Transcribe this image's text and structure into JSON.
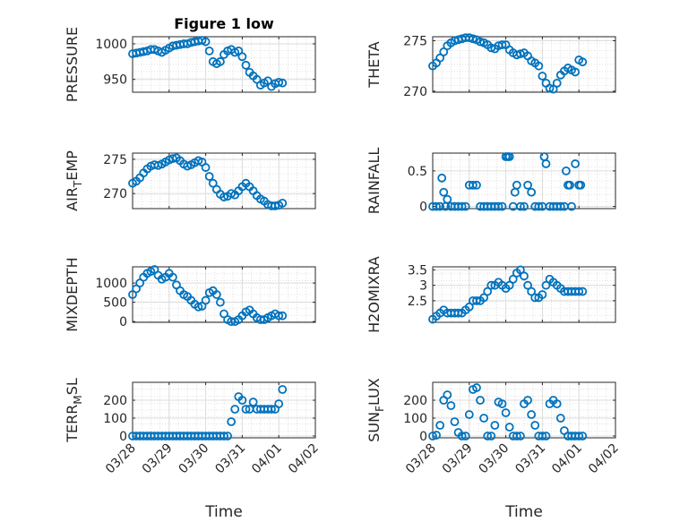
{
  "figure": {
    "title": "Figure 1 low",
    "marker_color": "#0072BD",
    "axis_color": "#262626",
    "grid_color": "#d9d9d9"
  },
  "chart_data": [
    {
      "type": "scatter",
      "ylabel": "PRESSURE",
      "ylabel_sub": "",
      "ylabel_tail": "",
      "xticks": [],
      "yticks": [
        950,
        1000
      ],
      "ylim": [
        932,
        1010
      ],
      "xlim": [
        0,
        5
      ],
      "x": [
        0.0,
        0.1,
        0.2,
        0.3,
        0.4,
        0.5,
        0.6,
        0.7,
        0.8,
        0.9,
        1.0,
        1.1,
        1.2,
        1.3,
        1.4,
        1.5,
        1.6,
        1.7,
        1.8,
        1.9,
        2.0,
        2.1,
        2.2,
        2.3,
        2.4,
        2.5,
        2.6,
        2.7,
        2.8,
        2.9,
        3.0,
        3.1,
        3.2,
        3.3,
        3.4,
        3.5,
        3.6,
        3.7,
        3.8,
        3.9,
        4.0,
        4.1
      ],
      "y": [
        986,
        987,
        988,
        989,
        990,
        992,
        992,
        990,
        988,
        991,
        994,
        997,
        998,
        999,
        1000,
        1000,
        1002,
        1003,
        1004,
        1005,
        1003,
        990,
        975,
        972,
        975,
        985,
        990,
        992,
        988,
        990,
        982,
        970,
        960,
        955,
        950,
        942,
        945,
        948,
        940,
        944,
        946,
        945
      ]
    },
    {
      "type": "scatter",
      "ylabel": "THETA",
      "ylabel_sub": "",
      "ylabel_tail": "",
      "xticks": [],
      "yticks": [
        270,
        275
      ],
      "ylim": [
        269.9,
        275.4
      ],
      "xlim": [
        0,
        5
      ],
      "x": [
        0.0,
        0.1,
        0.2,
        0.3,
        0.4,
        0.5,
        0.6,
        0.7,
        0.8,
        0.9,
        1.0,
        1.1,
        1.2,
        1.3,
        1.4,
        1.5,
        1.6,
        1.7,
        1.8,
        1.9,
        2.0,
        2.1,
        2.2,
        2.3,
        2.4,
        2.5,
        2.6,
        2.7,
        2.8,
        2.9,
        3.0,
        3.1,
        3.2,
        3.3,
        3.4,
        3.5,
        3.6,
        3.7,
        3.8,
        3.9,
        4.0,
        4.1
      ],
      "y": [
        272.5,
        272.8,
        273.3,
        273.9,
        274.5,
        274.8,
        275.0,
        275.1,
        275.2,
        275.3,
        275.3,
        275.2,
        275.1,
        274.9,
        274.8,
        274.6,
        274.3,
        274.2,
        274.5,
        274.6,
        274.6,
        274.1,
        273.8,
        273.6,
        273.7,
        273.8,
        273.5,
        273.0,
        272.8,
        272.5,
        271.5,
        270.8,
        270.3,
        270.2,
        270.8,
        271.6,
        272.0,
        272.3,
        272.1,
        271.9,
        273.1,
        272.9
      ]
    },
    {
      "type": "scatter",
      "ylabel": "AIR",
      "ylabel_sub": "T",
      "ylabel_tail": "EMP",
      "xticks": [],
      "yticks": [
        270,
        275
      ],
      "ylim": [
        267.8,
        275.9
      ],
      "xlim": [
        0,
        5
      ],
      "x": [
        0.0,
        0.1,
        0.2,
        0.3,
        0.4,
        0.5,
        0.6,
        0.7,
        0.8,
        0.9,
        1.0,
        1.1,
        1.2,
        1.3,
        1.4,
        1.5,
        1.6,
        1.7,
        1.8,
        1.9,
        2.0,
        2.1,
        2.2,
        2.3,
        2.4,
        2.5,
        2.6,
        2.7,
        2.8,
        2.9,
        3.0,
        3.1,
        3.2,
        3.3,
        3.4,
        3.5,
        3.6,
        3.7,
        3.8,
        3.9,
        4.0,
        4.1
      ],
      "y": [
        271.5,
        271.8,
        272.3,
        273.0,
        273.6,
        274.0,
        274.2,
        274.1,
        274.3,
        274.6,
        274.9,
        275.1,
        275.2,
        274.8,
        274.3,
        274.0,
        274.2,
        274.5,
        274.8,
        274.6,
        273.8,
        272.5,
        271.5,
        270.6,
        269.9,
        269.5,
        269.6,
        270.0,
        269.8,
        270.4,
        271.0,
        271.5,
        271.0,
        270.4,
        269.7,
        269.2,
        268.9,
        268.4,
        268.2,
        268.2,
        268.3,
        268.6
      ]
    },
    {
      "type": "scatter",
      "ylabel": "RAINFALL",
      "ylabel_sub": "",
      "ylabel_tail": "",
      "xticks": [],
      "yticks": [
        0,
        0.5
      ],
      "ylim": [
        -0.03,
        0.75
      ],
      "xlim": [
        0,
        5
      ],
      "x": [
        0.0,
        0.1,
        0.2,
        0.25,
        0.3,
        0.35,
        0.4,
        0.5,
        0.6,
        0.7,
        0.8,
        0.9,
        1.0,
        1.1,
        1.2,
        1.3,
        1.4,
        1.5,
        1.6,
        1.7,
        1.8,
        1.9,
        2.0,
        2.05,
        2.1,
        2.2,
        2.25,
        2.3,
        2.4,
        2.5,
        2.6,
        2.7,
        2.8,
        2.9,
        3.0,
        3.05,
        3.1,
        3.2,
        3.3,
        3.4,
        3.5,
        3.6,
        3.65,
        3.7,
        3.75,
        3.8,
        3.9,
        4.0,
        4.05
      ],
      "y": [
        0,
        0,
        0,
        0.4,
        0.2,
        0,
        0.1,
        0,
        0,
        0,
        0,
        0,
        0.3,
        0.3,
        0.3,
        0,
        0,
        0,
        0,
        0,
        0,
        0,
        0.7,
        0.7,
        0.7,
        0,
        0.2,
        0.3,
        0,
        0,
        0.3,
        0.2,
        0,
        0,
        0,
        0.7,
        0.6,
        0,
        0,
        0,
        0,
        0,
        0.5,
        0.3,
        0.3,
        0,
        0.6,
        0.3,
        0.3
      ]
    },
    {
      "type": "scatter",
      "ylabel": "MIXDEPTH",
      "ylabel_sub": "",
      "ylabel_tail": "",
      "xticks": [],
      "yticks": [
        0,
        500,
        1000
      ],
      "ylim": [
        -20,
        1420
      ],
      "xlim": [
        0,
        5
      ],
      "x": [
        0.0,
        0.1,
        0.2,
        0.3,
        0.4,
        0.5,
        0.6,
        0.7,
        0.8,
        0.9,
        1.0,
        1.1,
        1.2,
        1.3,
        1.4,
        1.5,
        1.6,
        1.7,
        1.8,
        1.9,
        2.0,
        2.1,
        2.2,
        2.3,
        2.4,
        2.5,
        2.6,
        2.7,
        2.8,
        2.9,
        3.0,
        3.1,
        3.2,
        3.3,
        3.4,
        3.5,
        3.6,
        3.7,
        3.8,
        3.9,
        4.0,
        4.1
      ],
      "y": [
        700,
        850,
        1000,
        1150,
        1250,
        1300,
        1350,
        1200,
        1100,
        1150,
        1250,
        1150,
        950,
        800,
        700,
        650,
        550,
        450,
        380,
        400,
        550,
        750,
        800,
        700,
        500,
        200,
        50,
        0,
        0,
        50,
        150,
        250,
        300,
        200,
        100,
        50,
        50,
        100,
        150,
        200,
        150,
        150
      ]
    },
    {
      "type": "scatter",
      "ylabel": "H2OMIXRA",
      "ylabel_sub": "",
      "ylabel_tail": "",
      "xticks": [],
      "yticks": [
        2.5,
        3,
        3.5
      ],
      "ylim": [
        1.8,
        3.6
      ],
      "xlim": [
        0,
        5
      ],
      "x": [
        0.0,
        0.1,
        0.2,
        0.3,
        0.4,
        0.5,
        0.6,
        0.7,
        0.8,
        0.9,
        1.0,
        1.1,
        1.2,
        1.3,
        1.4,
        1.5,
        1.6,
        1.7,
        1.8,
        1.9,
        2.0,
        2.1,
        2.2,
        2.3,
        2.4,
        2.5,
        2.6,
        2.7,
        2.8,
        2.9,
        3.0,
        3.1,
        3.2,
        3.3,
        3.4,
        3.5,
        3.6,
        3.7,
        3.8,
        3.9,
        4.0,
        4.1
      ],
      "y": [
        1.9,
        2.0,
        2.1,
        2.2,
        2.1,
        2.1,
        2.1,
        2.1,
        2.1,
        2.2,
        2.3,
        2.5,
        2.5,
        2.5,
        2.6,
        2.8,
        3.0,
        3.0,
        3.1,
        3.0,
        2.9,
        3.0,
        3.2,
        3.4,
        3.5,
        3.3,
        3.0,
        2.8,
        2.6,
        2.6,
        2.7,
        3.0,
        3.2,
        3.1,
        3.0,
        2.9,
        2.8,
        2.8,
        2.8,
        2.8,
        2.8,
        2.8
      ]
    },
    {
      "type": "scatter",
      "ylabel": "TERR",
      "ylabel_sub": "M",
      "ylabel_tail": "SL",
      "xticks": [
        "03/28",
        "03/29",
        "03/30",
        "03/31",
        "04/01",
        "04/02"
      ],
      "yticks": [
        0,
        100,
        200
      ],
      "ylim": [
        -10,
        300
      ],
      "xlim": [
        0,
        5
      ],
      "xlabel": "Time",
      "x": [
        0.0,
        0.1,
        0.2,
        0.3,
        0.4,
        0.5,
        0.6,
        0.7,
        0.8,
        0.9,
        1.0,
        1.1,
        1.2,
        1.3,
        1.4,
        1.5,
        1.6,
        1.7,
        1.8,
        1.9,
        2.0,
        2.1,
        2.2,
        2.3,
        2.4,
        2.5,
        2.6,
        2.7,
        2.8,
        2.9,
        3.0,
        3.1,
        3.2,
        3.3,
        3.4,
        3.5,
        3.6,
        3.7,
        3.8,
        3.9,
        4.0,
        4.1
      ],
      "y": [
        0,
        0,
        0,
        0,
        0,
        0,
        0,
        0,
        0,
        0,
        0,
        0,
        0,
        0,
        0,
        0,
        0,
        0,
        0,
        0,
        0,
        0,
        0,
        0,
        0,
        0,
        0,
        80,
        150,
        220,
        200,
        150,
        150,
        190,
        150,
        150,
        150,
        150,
        150,
        150,
        180,
        260
      ]
    },
    {
      "type": "scatter",
      "ylabel": "SUN",
      "ylabel_sub": "F",
      "ylabel_tail": "LUX",
      "xticks": [
        "03/28",
        "03/29",
        "03/30",
        "03/31",
        "04/01",
        "04/02"
      ],
      "yticks": [
        0,
        100,
        200
      ],
      "ylim": [
        -10,
        300
      ],
      "xlim": [
        0,
        5
      ],
      "xlabel": "Time",
      "x": [
        0.0,
        0.1,
        0.2,
        0.3,
        0.4,
        0.5,
        0.6,
        0.7,
        0.8,
        0.9,
        1.0,
        1.1,
        1.2,
        1.3,
        1.4,
        1.5,
        1.6,
        1.7,
        1.8,
        1.9,
        2.0,
        2.1,
        2.2,
        2.3,
        2.4,
        2.5,
        2.6,
        2.7,
        2.8,
        2.9,
        3.0,
        3.1,
        3.2,
        3.3,
        3.4,
        3.5,
        3.6,
        3.7,
        3.8,
        3.9,
        4.0,
        4.1
      ],
      "y": [
        0,
        5,
        60,
        200,
        230,
        170,
        80,
        20,
        0,
        0,
        120,
        260,
        270,
        200,
        100,
        0,
        0,
        60,
        190,
        180,
        130,
        50,
        0,
        0,
        0,
        180,
        200,
        120,
        60,
        0,
        0,
        0,
        180,
        200,
        180,
        100,
        30,
        0,
        0,
        0,
        0,
        0
      ]
    }
  ]
}
